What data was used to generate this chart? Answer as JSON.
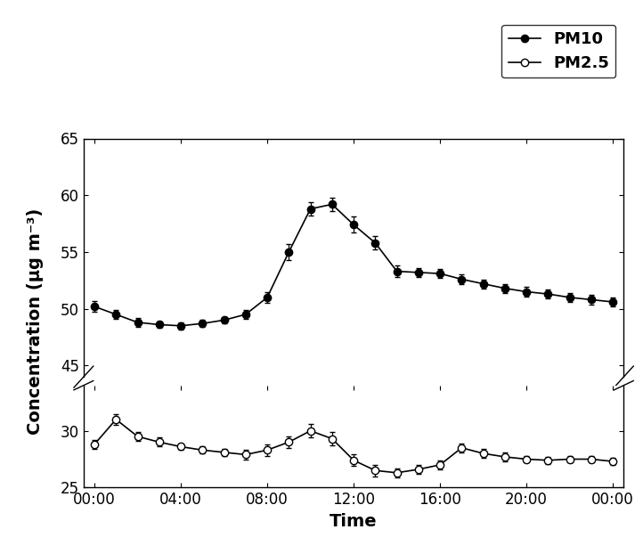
{
  "pm10_x": [
    0,
    1,
    2,
    3,
    4,
    5,
    6,
    7,
    8,
    9,
    10,
    11,
    12,
    13,
    14,
    15,
    16,
    17,
    18,
    19,
    20,
    21,
    22,
    23,
    24
  ],
  "pm10_y": [
    50.2,
    49.5,
    48.8,
    48.6,
    48.5,
    48.7,
    49.0,
    49.5,
    51.0,
    55.0,
    58.8,
    59.2,
    57.4,
    55.8,
    53.3,
    53.2,
    53.1,
    52.6,
    52.2,
    51.8,
    51.5,
    51.3,
    51.0,
    50.8,
    50.6
  ],
  "pm10_err": [
    0.5,
    0.4,
    0.4,
    0.3,
    0.3,
    0.3,
    0.3,
    0.4,
    0.5,
    0.7,
    0.6,
    0.6,
    0.7,
    0.6,
    0.5,
    0.4,
    0.4,
    0.4,
    0.4,
    0.4,
    0.4,
    0.4,
    0.4,
    0.4,
    0.4
  ],
  "pm25_x": [
    0,
    1,
    2,
    3,
    4,
    5,
    6,
    7,
    8,
    9,
    10,
    11,
    12,
    13,
    14,
    15,
    16,
    17,
    18,
    19,
    20,
    21,
    22,
    23,
    24
  ],
  "pm25_y": [
    28.8,
    31.0,
    29.5,
    29.0,
    28.6,
    28.3,
    28.1,
    27.9,
    28.3,
    29.0,
    30.0,
    29.3,
    27.4,
    26.5,
    26.3,
    26.6,
    27.0,
    28.5,
    28.0,
    27.7,
    27.5,
    27.4,
    27.5,
    27.5,
    27.3
  ],
  "pm25_err": [
    0.4,
    0.5,
    0.4,
    0.4,
    0.3,
    0.3,
    0.3,
    0.4,
    0.5,
    0.5,
    0.6,
    0.6,
    0.5,
    0.5,
    0.4,
    0.4,
    0.4,
    0.4,
    0.4,
    0.4,
    0.3,
    0.3,
    0.3,
    0.3,
    0.3
  ],
  "xlabel": "Time",
  "ylabel": "Concentration (μg m⁻³)",
  "yticks_upper": [
    45,
    50,
    55,
    60,
    65
  ],
  "yticks_lower": [
    25,
    30
  ],
  "xtick_labels": [
    "00:00",
    "04:00",
    "08:00",
    "12:00",
    "16:00",
    "20:00",
    "00:00"
  ],
  "xtick_positions": [
    0,
    4,
    8,
    12,
    16,
    20,
    24
  ],
  "legend_pm10": "PM10",
  "legend_pm25": "PM2.5",
  "line_color": "black",
  "markersize": 6,
  "linewidth": 1.2,
  "background_color": "#ffffff",
  "ylim_lower_min": 25,
  "ylim_lower_max": 34,
  "ylim_upper_min": 44,
  "ylim_upper_max": 65,
  "label_fontsize": 14,
  "tick_fontsize": 12,
  "legend_fontsize": 13
}
